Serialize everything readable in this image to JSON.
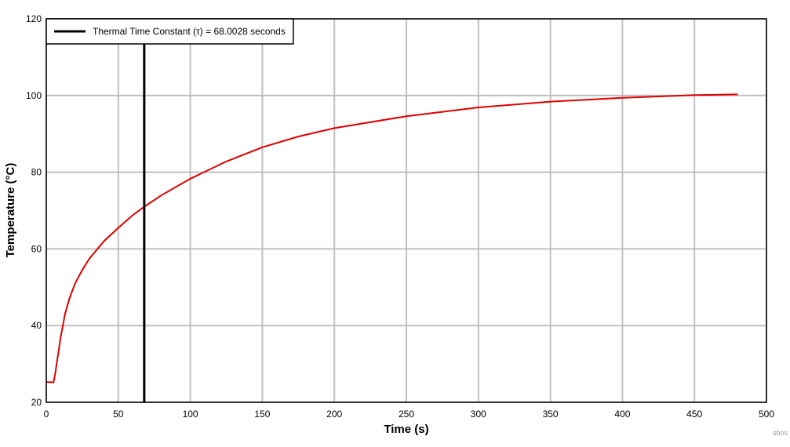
{
  "chart_data": {
    "type": "line",
    "x_label": "Time (s)",
    "y_label": "Temperature (°C)",
    "xlim": [
      0,
      500
    ],
    "xticks": [
      0,
      50,
      100,
      150,
      200,
      250,
      300,
      350,
      400,
      450,
      500
    ],
    "ylim": [
      20,
      120
    ],
    "yticks": [
      20,
      40,
      60,
      80,
      100,
      120
    ],
    "grid": true,
    "series": [
      {
        "color": "#dd0000",
        "x": [
          0,
          5,
          6,
          8,
          10,
          13,
          16,
          20,
          25,
          30,
          40,
          50,
          60,
          68,
          80,
          100,
          125,
          150,
          175,
          200,
          250,
          300,
          350,
          400,
          450,
          480
        ],
        "values": [
          25.3,
          25.2,
          27,
          32,
          37,
          43,
          47,
          51,
          54.5,
          57.5,
          62,
          65.5,
          68.8,
          71,
          74,
          78.3,
          82.8,
          86.5,
          89.3,
          91.5,
          94.6,
          96.9,
          98.4,
          99.4,
          100.1,
          100.3
        ]
      }
    ],
    "vline": {
      "name": "Thermal Time Constant (τ) = 68.0028 seconds",
      "x": 68.0028,
      "color": "#000000"
    },
    "legend": "upper left",
    "watermark": "sbos"
  }
}
